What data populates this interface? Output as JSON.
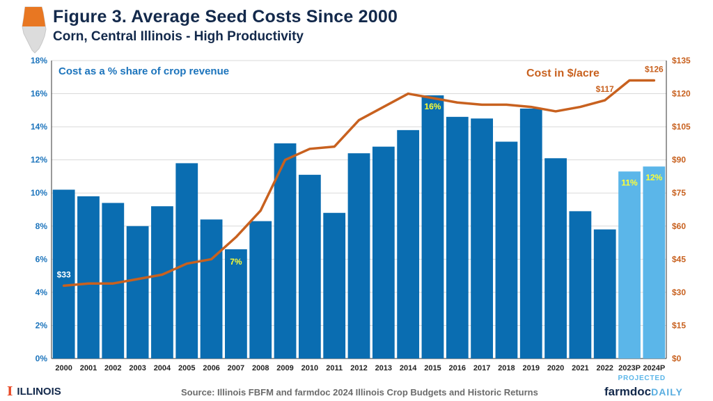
{
  "header": {
    "title": "Figure 3. Average Seed Costs Since 2000",
    "subtitle": "Corn, Central Illinois - High Productivity"
  },
  "footer": {
    "university": "ILLINOIS",
    "source": "Source: Illinois FBFM and farmdoc 2024 Illinois Crop Budgets and Historic Returns",
    "brand_main": "farmdoc",
    "brand_suffix": "DAILY"
  },
  "colors": {
    "bar_actual": "#0a6db1",
    "bar_projected": "#5bb6e9",
    "line": "#c8611f",
    "left_axis_text": "#1c74bc",
    "right_axis_text": "#c8611f",
    "highlight_label": "#ffff33",
    "title": "#13294b"
  },
  "chart_data": {
    "type": "bar+line",
    "categories": [
      "2000",
      "2001",
      "2002",
      "2003",
      "2004",
      "2005",
      "2006",
      "2007",
      "2008",
      "2009",
      "2010",
      "2011",
      "2012",
      "2013",
      "2014",
      "2015",
      "2016",
      "2017",
      "2018",
      "2019",
      "2020",
      "2021",
      "2022",
      "2023P",
      "2024P"
    ],
    "projected_note": "PROJECTED",
    "series": [
      {
        "name": "Cost as a % share of crop revenue",
        "type": "bar",
        "axis": "left",
        "values": [
          10.2,
          9.8,
          9.4,
          8.0,
          9.2,
          11.8,
          8.4,
          6.6,
          8.3,
          13.0,
          11.1,
          8.8,
          12.4,
          12.8,
          13.8,
          15.9,
          14.6,
          14.5,
          13.1,
          15.1,
          12.1,
          8.9,
          7.8,
          11.3,
          11.6
        ],
        "projected_from_index": 23
      },
      {
        "name": "Cost in $/acre",
        "type": "line",
        "axis": "right",
        "values": [
          33,
          34,
          34,
          36,
          38,
          43,
          45,
          55,
          67,
          90,
          95,
          96,
          108,
          114,
          120,
          118,
          116,
          115,
          115,
          114,
          112,
          114,
          117,
          126,
          126
        ]
      }
    ],
    "left_axis": {
      "min": 0,
      "max": 18,
      "step": 2,
      "tick_labels": [
        "0%",
        "2%",
        "4%",
        "6%",
        "8%",
        "10%",
        "12%",
        "14%",
        "16%",
        "18%"
      ]
    },
    "right_axis": {
      "min": 0,
      "max": 135,
      "step": 15,
      "tick_labels": [
        "$0",
        "$15",
        "$30",
        "$45",
        "$60",
        "$75",
        "$90",
        "$105",
        "$120",
        "$135"
      ]
    },
    "annotations": [
      {
        "text": "$33",
        "series": 1,
        "index": 0,
        "color": "white"
      },
      {
        "text": "7%",
        "series": 0,
        "index": 7,
        "color": "yellow"
      },
      {
        "text": "16%",
        "series": 0,
        "index": 15,
        "color": "yellow"
      },
      {
        "text": "$117",
        "series": 1,
        "index": 22,
        "color": "orange"
      },
      {
        "text": "$126",
        "series": 1,
        "index": 24,
        "color": "orange"
      },
      {
        "text": "11%",
        "series": 0,
        "index": 23,
        "color": "yellow"
      },
      {
        "text": "12%",
        "series": 0,
        "index": 24,
        "color": "yellow"
      }
    ],
    "grid": true
  }
}
